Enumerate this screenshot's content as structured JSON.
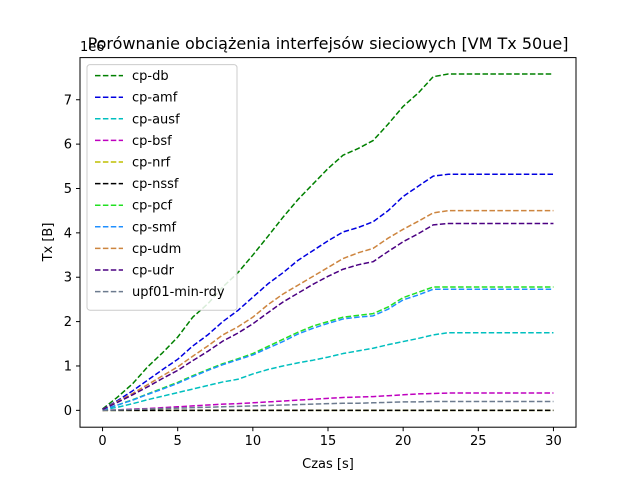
{
  "chart_data": {
    "type": "line",
    "title": "Porównanie obciążenia interfejsów sieciowych [VM Tx 50ue]",
    "xlabel": "Czas [s]",
    "ylabel": "Tx [B]",
    "y_offset_text": "1e6",
    "xlim": [
      -1.5,
      31.5
    ],
    "ylim": [
      -0.38,
      7.95
    ],
    "xticks": [
      0,
      5,
      10,
      15,
      20,
      25,
      30
    ],
    "yticks": [
      0,
      1,
      2,
      3,
      4,
      5,
      6,
      7
    ],
    "grid": false,
    "legend_position": "upper left",
    "x": [
      0,
      1,
      2,
      3,
      4,
      5,
      6,
      7,
      8,
      9,
      10,
      11,
      12,
      13,
      14,
      15,
      16,
      17,
      18,
      19,
      20,
      21,
      22,
      23,
      24,
      25,
      26,
      27,
      28,
      29,
      30
    ],
    "series": [
      {
        "name": "cp-db",
        "color": "#008000",
        "values": [
          0.03,
          0.3,
          0.6,
          0.98,
          1.3,
          1.65,
          2.1,
          2.4,
          2.78,
          3.1,
          3.5,
          3.92,
          4.35,
          4.75,
          5.1,
          5.45,
          5.75,
          5.9,
          6.08,
          6.45,
          6.85,
          7.15,
          7.52,
          7.58,
          7.58,
          7.58,
          7.58,
          7.58,
          7.58,
          7.58,
          7.58
        ]
      },
      {
        "name": "cp-amf",
        "color": "#0000e0",
        "values": [
          0.02,
          0.22,
          0.44,
          0.68,
          0.92,
          1.15,
          1.45,
          1.7,
          2.0,
          2.25,
          2.55,
          2.85,
          3.1,
          3.38,
          3.6,
          3.82,
          4.02,
          4.12,
          4.25,
          4.5,
          4.82,
          5.05,
          5.28,
          5.32,
          5.32,
          5.32,
          5.32,
          5.32,
          5.32,
          5.32,
          5.32
        ]
      },
      {
        "name": "cp-ausf",
        "color": "#00bfbf",
        "values": [
          0.01,
          0.07,
          0.15,
          0.24,
          0.32,
          0.4,
          0.48,
          0.56,
          0.64,
          0.7,
          0.82,
          0.92,
          1.0,
          1.07,
          1.13,
          1.2,
          1.28,
          1.34,
          1.4,
          1.48,
          1.55,
          1.62,
          1.7,
          1.75,
          1.75,
          1.75,
          1.75,
          1.75,
          1.75,
          1.75,
          1.75
        ]
      },
      {
        "name": "cp-bsf",
        "color": "#bf00bf",
        "values": [
          0.0,
          0.01,
          0.03,
          0.04,
          0.06,
          0.08,
          0.1,
          0.12,
          0.14,
          0.15,
          0.17,
          0.19,
          0.21,
          0.23,
          0.25,
          0.27,
          0.29,
          0.3,
          0.31,
          0.33,
          0.35,
          0.37,
          0.38,
          0.39,
          0.39,
          0.39,
          0.39,
          0.39,
          0.39,
          0.39,
          0.39
        ]
      },
      {
        "name": "cp-nrf",
        "color": "#bfbf00",
        "values": [
          0.0,
          0.0,
          0.0,
          0.0,
          0.0,
          0.0,
          0.0,
          0.0,
          0.0,
          0.0,
          0.0,
          0.0,
          0.0,
          0.0,
          0.0,
          0.0,
          0.0,
          0.0,
          0.0,
          0.0,
          0.0,
          0.0,
          0.0,
          0.0,
          0.0,
          0.0,
          0.0,
          0.0,
          0.0,
          0.0,
          0.0
        ]
      },
      {
        "name": "cp-nssf",
        "color": "#000000",
        "values": [
          0.0,
          0.0,
          0.0,
          0.0,
          0.0,
          0.0,
          0.0,
          0.0,
          0.0,
          0.0,
          0.0,
          0.0,
          0.0,
          0.0,
          0.0,
          0.0,
          0.0,
          0.0,
          0.0,
          0.0,
          0.0,
          0.0,
          0.0,
          0.0,
          0.0,
          0.0,
          0.0,
          0.0,
          0.0,
          0.0,
          0.0
        ]
      },
      {
        "name": "cp-pcf",
        "color": "#22e022",
        "values": [
          0.01,
          0.12,
          0.24,
          0.37,
          0.5,
          0.63,
          0.78,
          0.92,
          1.05,
          1.16,
          1.28,
          1.44,
          1.6,
          1.76,
          1.9,
          2.0,
          2.1,
          2.14,
          2.18,
          2.33,
          2.54,
          2.66,
          2.78,
          2.78,
          2.78,
          2.78,
          2.78,
          2.78,
          2.78,
          2.78,
          2.78
        ]
      },
      {
        "name": "cp-smf",
        "color": "#1f8fff",
        "values": [
          0.01,
          0.12,
          0.23,
          0.36,
          0.48,
          0.61,
          0.76,
          0.9,
          1.03,
          1.14,
          1.25,
          1.4,
          1.55,
          1.72,
          1.85,
          1.96,
          2.06,
          2.1,
          2.13,
          2.28,
          2.49,
          2.6,
          2.73,
          2.73,
          2.73,
          2.73,
          2.73,
          2.73,
          2.73,
          2.73,
          2.73
        ]
      },
      {
        "name": "cp-udm",
        "color": "#cd853f",
        "values": [
          0.02,
          0.2,
          0.38,
          0.58,
          0.78,
          0.98,
          1.22,
          1.45,
          1.7,
          1.88,
          2.1,
          2.38,
          2.62,
          2.82,
          3.02,
          3.22,
          3.42,
          3.55,
          3.65,
          3.88,
          4.08,
          4.26,
          4.45,
          4.5,
          4.5,
          4.5,
          4.5,
          4.5,
          4.5,
          4.5,
          4.5
        ]
      },
      {
        "name": "cp-udr",
        "color": "#4b0082",
        "values": [
          0.02,
          0.18,
          0.35,
          0.53,
          0.72,
          0.9,
          1.12,
          1.33,
          1.56,
          1.74,
          1.95,
          2.2,
          2.44,
          2.64,
          2.84,
          3.02,
          3.18,
          3.28,
          3.35,
          3.58,
          3.8,
          3.98,
          4.18,
          4.21,
          4.21,
          4.21,
          4.21,
          4.21,
          4.21,
          4.21,
          4.21
        ]
      },
      {
        "name": "upf01-min-rdy",
        "color": "#6c7b8f",
        "values": [
          0.0,
          0.01,
          0.02,
          0.03,
          0.04,
          0.05,
          0.06,
          0.07,
          0.08,
          0.09,
          0.1,
          0.11,
          0.12,
          0.13,
          0.14,
          0.15,
          0.16,
          0.16,
          0.17,
          0.18,
          0.19,
          0.19,
          0.2,
          0.2,
          0.2,
          0.2,
          0.2,
          0.2,
          0.2,
          0.2,
          0.2
        ]
      }
    ]
  }
}
